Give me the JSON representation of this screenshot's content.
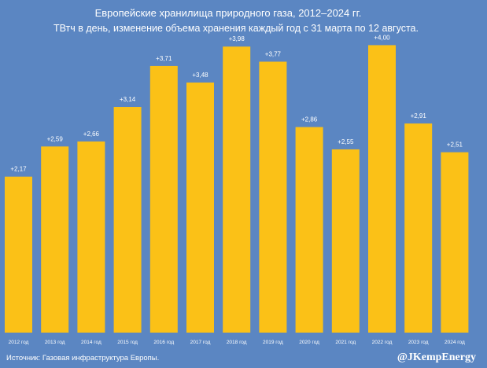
{
  "chart_data": {
    "type": "bar",
    "title": "Европейские хранилища природного газа, 2012–2024 гг.",
    "subtitle": "ТВтч в день, изменение объема хранения каждый год с 31 марта по 12 августа.",
    "categories": [
      "2012 год",
      "2013 год",
      "2014 год",
      "2015 год",
      "2016 год",
      "2017 год",
      "2018 год",
      "2019 год",
      "2020 год",
      "2021 год",
      "2022 год",
      "2023 год",
      "2024 год"
    ],
    "values": [
      2.17,
      2.59,
      2.66,
      3.14,
      3.71,
      3.48,
      3.98,
      3.77,
      2.86,
      2.55,
      4.0,
      2.91,
      2.51
    ],
    "labels": [
      "+2,17",
      "+2,59",
      "+2,66",
      "+3,14",
      "+3,71",
      "+3,48",
      "+3,98",
      "+3,77",
      "+2,86",
      "+2,55",
      "+4,00",
      "+2,91",
      "+2,51"
    ],
    "ylim": [
      0,
      4.3
    ],
    "xlabel": "",
    "ylabel": "",
    "grid": false,
    "legend": "none"
  },
  "colors": {
    "background": "#5b86c2",
    "bar": "#fbc117",
    "text": "#ffffff"
  },
  "footer": {
    "source": "Источник: Газовая инфраструктура Европы.",
    "handle": "@JKempEnergy"
  }
}
